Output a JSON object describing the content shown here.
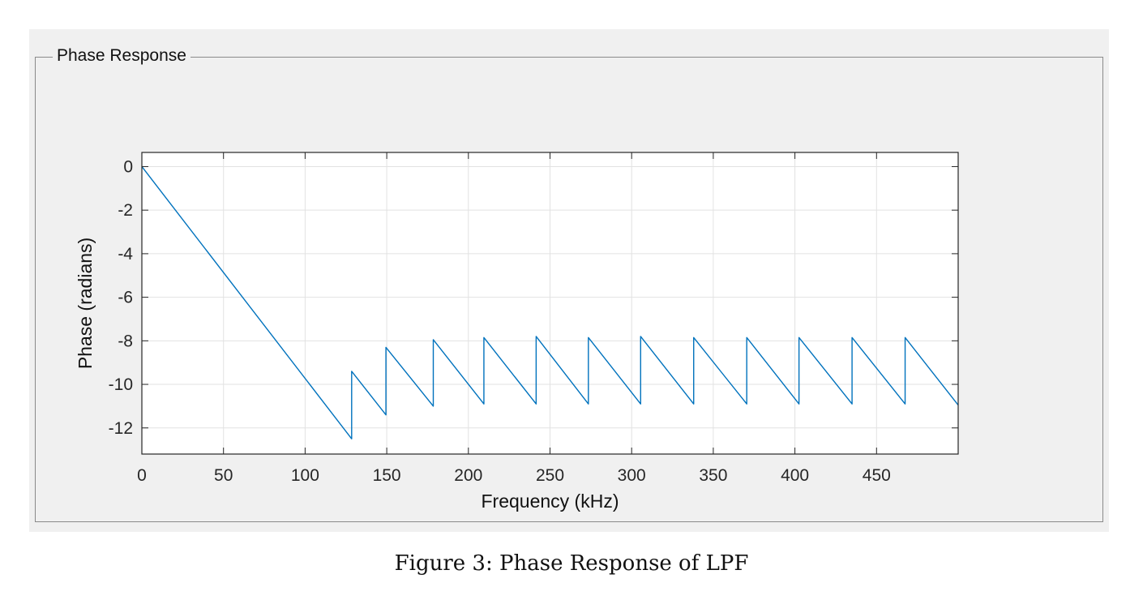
{
  "panel": {
    "title": "Phase Response"
  },
  "caption": "Figure 3: Phase Response of LPF",
  "chart_data": {
    "type": "line",
    "title": "",
    "xlabel": "Frequency (kHz)",
    "ylabel": "Phase (radians)",
    "xlim": [
      0,
      500
    ],
    "ylim": [
      -13.2,
      0.65
    ],
    "xticks": [
      0,
      50,
      100,
      150,
      200,
      250,
      300,
      350,
      400,
      450
    ],
    "yticks": [
      0,
      -2,
      -4,
      -6,
      -8,
      -10,
      -12
    ],
    "xtick_labels": [
      "0",
      "50",
      "100",
      "150",
      "200",
      "250",
      "300",
      "350",
      "400",
      "450"
    ],
    "ytick_labels": [
      "0",
      "-2",
      "-4",
      "-6",
      "-8",
      "-10",
      "-12"
    ],
    "grid": true,
    "line_color": "#0072BD",
    "series": [
      {
        "x": [
          0,
          128.5,
          128.5,
          149.5,
          149.5,
          178.5,
          178.5,
          209.5,
          209.5,
          241.5,
          241.5,
          273.5,
          273.5,
          305.5,
          305.5,
          338,
          338,
          370.5,
          370.5,
          402.5,
          402.5,
          435,
          435,
          467.5,
          467.5,
          500
        ],
        "y": [
          0,
          -12.5,
          -9.4,
          -11.4,
          -8.3,
          -11.0,
          -7.95,
          -10.9,
          -7.85,
          -10.9,
          -7.8,
          -10.9,
          -7.85,
          -10.9,
          -7.8,
          -10.9,
          -7.85,
          -10.9,
          -7.85,
          -10.9,
          -7.85,
          -10.9,
          -7.85,
          -10.9,
          -7.85,
          -10.95
        ]
      }
    ]
  }
}
